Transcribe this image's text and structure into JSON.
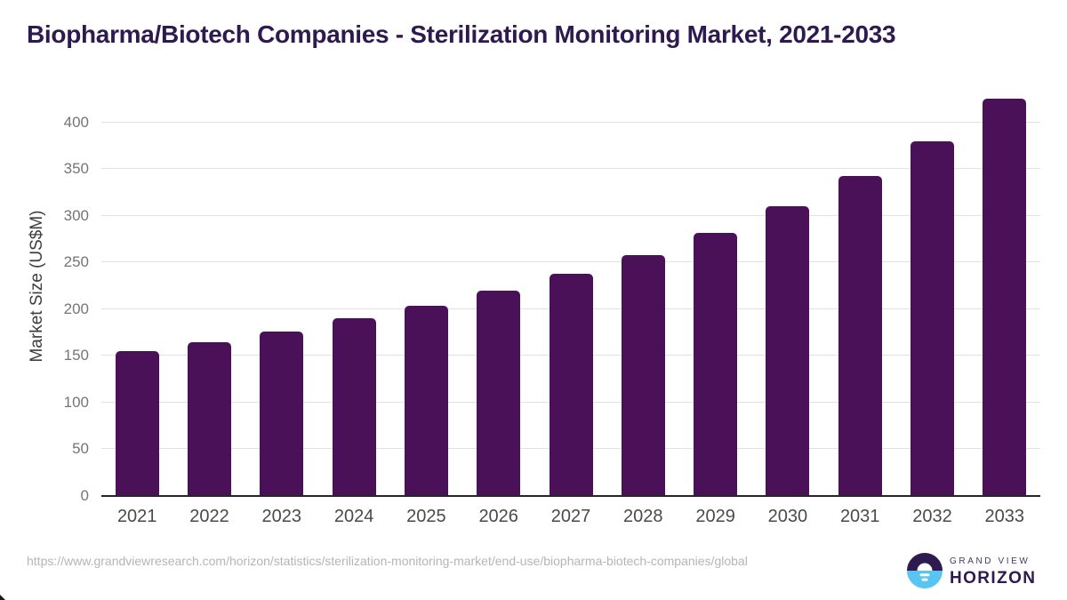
{
  "chart_data": {
    "type": "bar",
    "title": "Biopharma/Biotech Companies - Sterilization Monitoring Market, 2021-2033",
    "xlabel": "",
    "ylabel": "Market Size (US$M)",
    "categories": [
      "2021",
      "2022",
      "2023",
      "2024",
      "2025",
      "2026",
      "2027",
      "2028",
      "2029",
      "2030",
      "2031",
      "2032",
      "2033"
    ],
    "values": [
      155,
      165,
      176,
      190,
      204,
      220,
      238,
      258,
      282,
      310,
      342,
      380,
      425
    ],
    "yticks": [
      0,
      50,
      100,
      150,
      200,
      250,
      300,
      350,
      400
    ],
    "ylim": [
      0,
      440
    ],
    "grid": "horizontal",
    "legend": "none",
    "bar_color": "#4A1158"
  },
  "footer": {
    "source_url": "https://www.grandviewresearch.com/horizon/statistics/sterilization-monitoring-market/end-use/biopharma-biotech-companies/global",
    "brand": {
      "top": "GRAND VIEW",
      "bottom": "HORIZON"
    }
  },
  "colors": {
    "title_text": "#2E1A4F",
    "bar": "#4A1158",
    "gridline": "#E2E2E2",
    "axis_line": "#262626",
    "y_tick_text": "#757575",
    "x_tick_text": "#4A4A4A",
    "y_axis_title_text": "#3D3D3D",
    "url_text": "#B5B5B5",
    "logo_purple": "#2E1A4F",
    "logo_blue": "#58C4F2"
  }
}
